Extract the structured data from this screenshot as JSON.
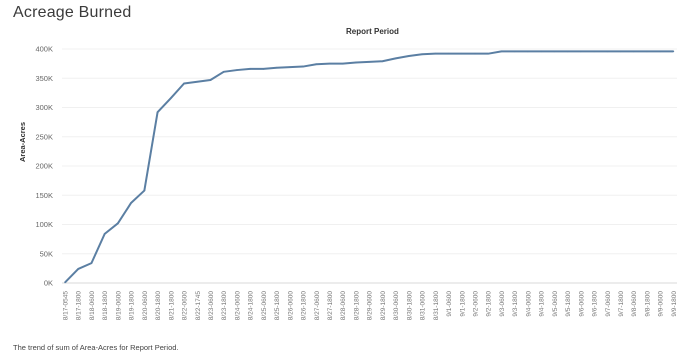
{
  "page": {
    "title": "Acreage Burned",
    "caption": "The trend of sum of Area-Acres for Report Period."
  },
  "chart_data": {
    "type": "line",
    "xlabel": "Report Period",
    "ylabel": "Area-Acres",
    "ylim": [
      0,
      400000
    ],
    "yticks": [
      {
        "value": 0,
        "label": "0K"
      },
      {
        "value": 50000,
        "label": "50K"
      },
      {
        "value": 100000,
        "label": "100K"
      },
      {
        "value": 150000,
        "label": "150K"
      },
      {
        "value": 200000,
        "label": "200K"
      },
      {
        "value": 250000,
        "label": "250K"
      },
      {
        "value": 300000,
        "label": "300K"
      },
      {
        "value": 350000,
        "label": "350K"
      },
      {
        "value": 400000,
        "label": "400K"
      }
    ],
    "grid": true,
    "line_color": "#5b7fa3",
    "x": [
      "8/17-0545",
      "8/17-1800",
      "8/18-0600",
      "8/18-1800",
      "8/19-0600",
      "8/19-1800",
      "8/20-0600",
      "8/20-1800",
      "8/21-1800",
      "8/22-0600",
      "8/22-1745",
      "8/23-0600",
      "8/23-1800",
      "8/24-0600",
      "8/24-1800",
      "8/25-0600",
      "8/25-1800",
      "8/26-0600",
      "8/26-1800",
      "8/27-0600",
      "8/27-1800",
      "8/28-0600",
      "8/28-1800",
      "8/29-0600",
      "8/29-1800",
      "8/30-0600",
      "8/30-1800",
      "8/31-0600",
      "8/31-1800",
      "9/1-0600",
      "9/1-1800",
      "9/2-0600",
      "9/2-1800",
      "9/3-0600",
      "9/3-1800",
      "9/4-0600",
      "9/4-1800",
      "9/5-0600",
      "9/5-1800",
      "9/6-0600",
      "9/6-1800",
      "9/7-0600",
      "9/7-1800",
      "9/8-0600",
      "9/8-1800",
      "9/9-0600",
      "9/9-1800"
    ],
    "values": [
      1000,
      24000,
      34000,
      84000,
      102000,
      137000,
      158000,
      292000,
      316000,
      341000,
      344000,
      347000,
      361000,
      364000,
      366000,
      366000,
      368000,
      369000,
      370000,
      374000,
      375000,
      375000,
      377000,
      378000,
      379000,
      384000,
      388000,
      391000,
      392000,
      392000,
      392000,
      392000,
      392000,
      396000,
      396000,
      396000,
      396000,
      396000,
      396000,
      396000,
      396000,
      396000,
      396000,
      396000,
      396000,
      396000,
      396000
    ]
  }
}
